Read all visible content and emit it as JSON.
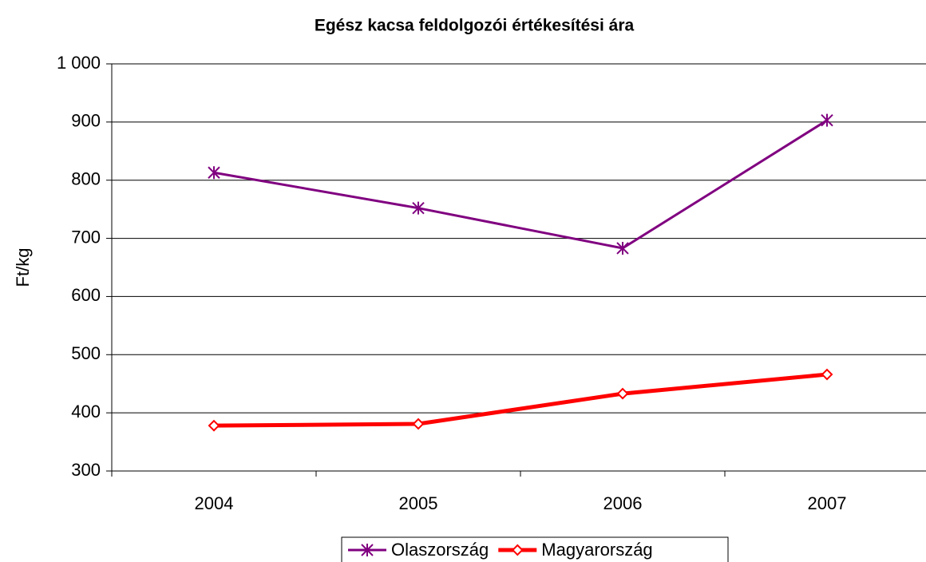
{
  "chart_data": {
    "type": "line",
    "title": "Egész kacsa feldolgozói értékesítési ára",
    "y_label": "Ft/kg",
    "categories": [
      "2004",
      "2005",
      "2006",
      "2007"
    ],
    "series": [
      {
        "name": "Olaszország",
        "color": "#800080",
        "marker": "asterisk",
        "values": [
          813,
          752,
          683,
          903
        ]
      },
      {
        "name": "Magyarország",
        "color": "#ff0000",
        "marker": "diamond",
        "values": [
          378,
          381,
          433,
          466
        ]
      }
    ],
    "ylim": [
      300,
      1000
    ],
    "yticks": [
      300,
      400,
      500,
      600,
      700,
      800,
      900,
      {
        "value": 1000,
        "label": "1 000"
      }
    ],
    "grid": true,
    "legend": "bottom"
  }
}
